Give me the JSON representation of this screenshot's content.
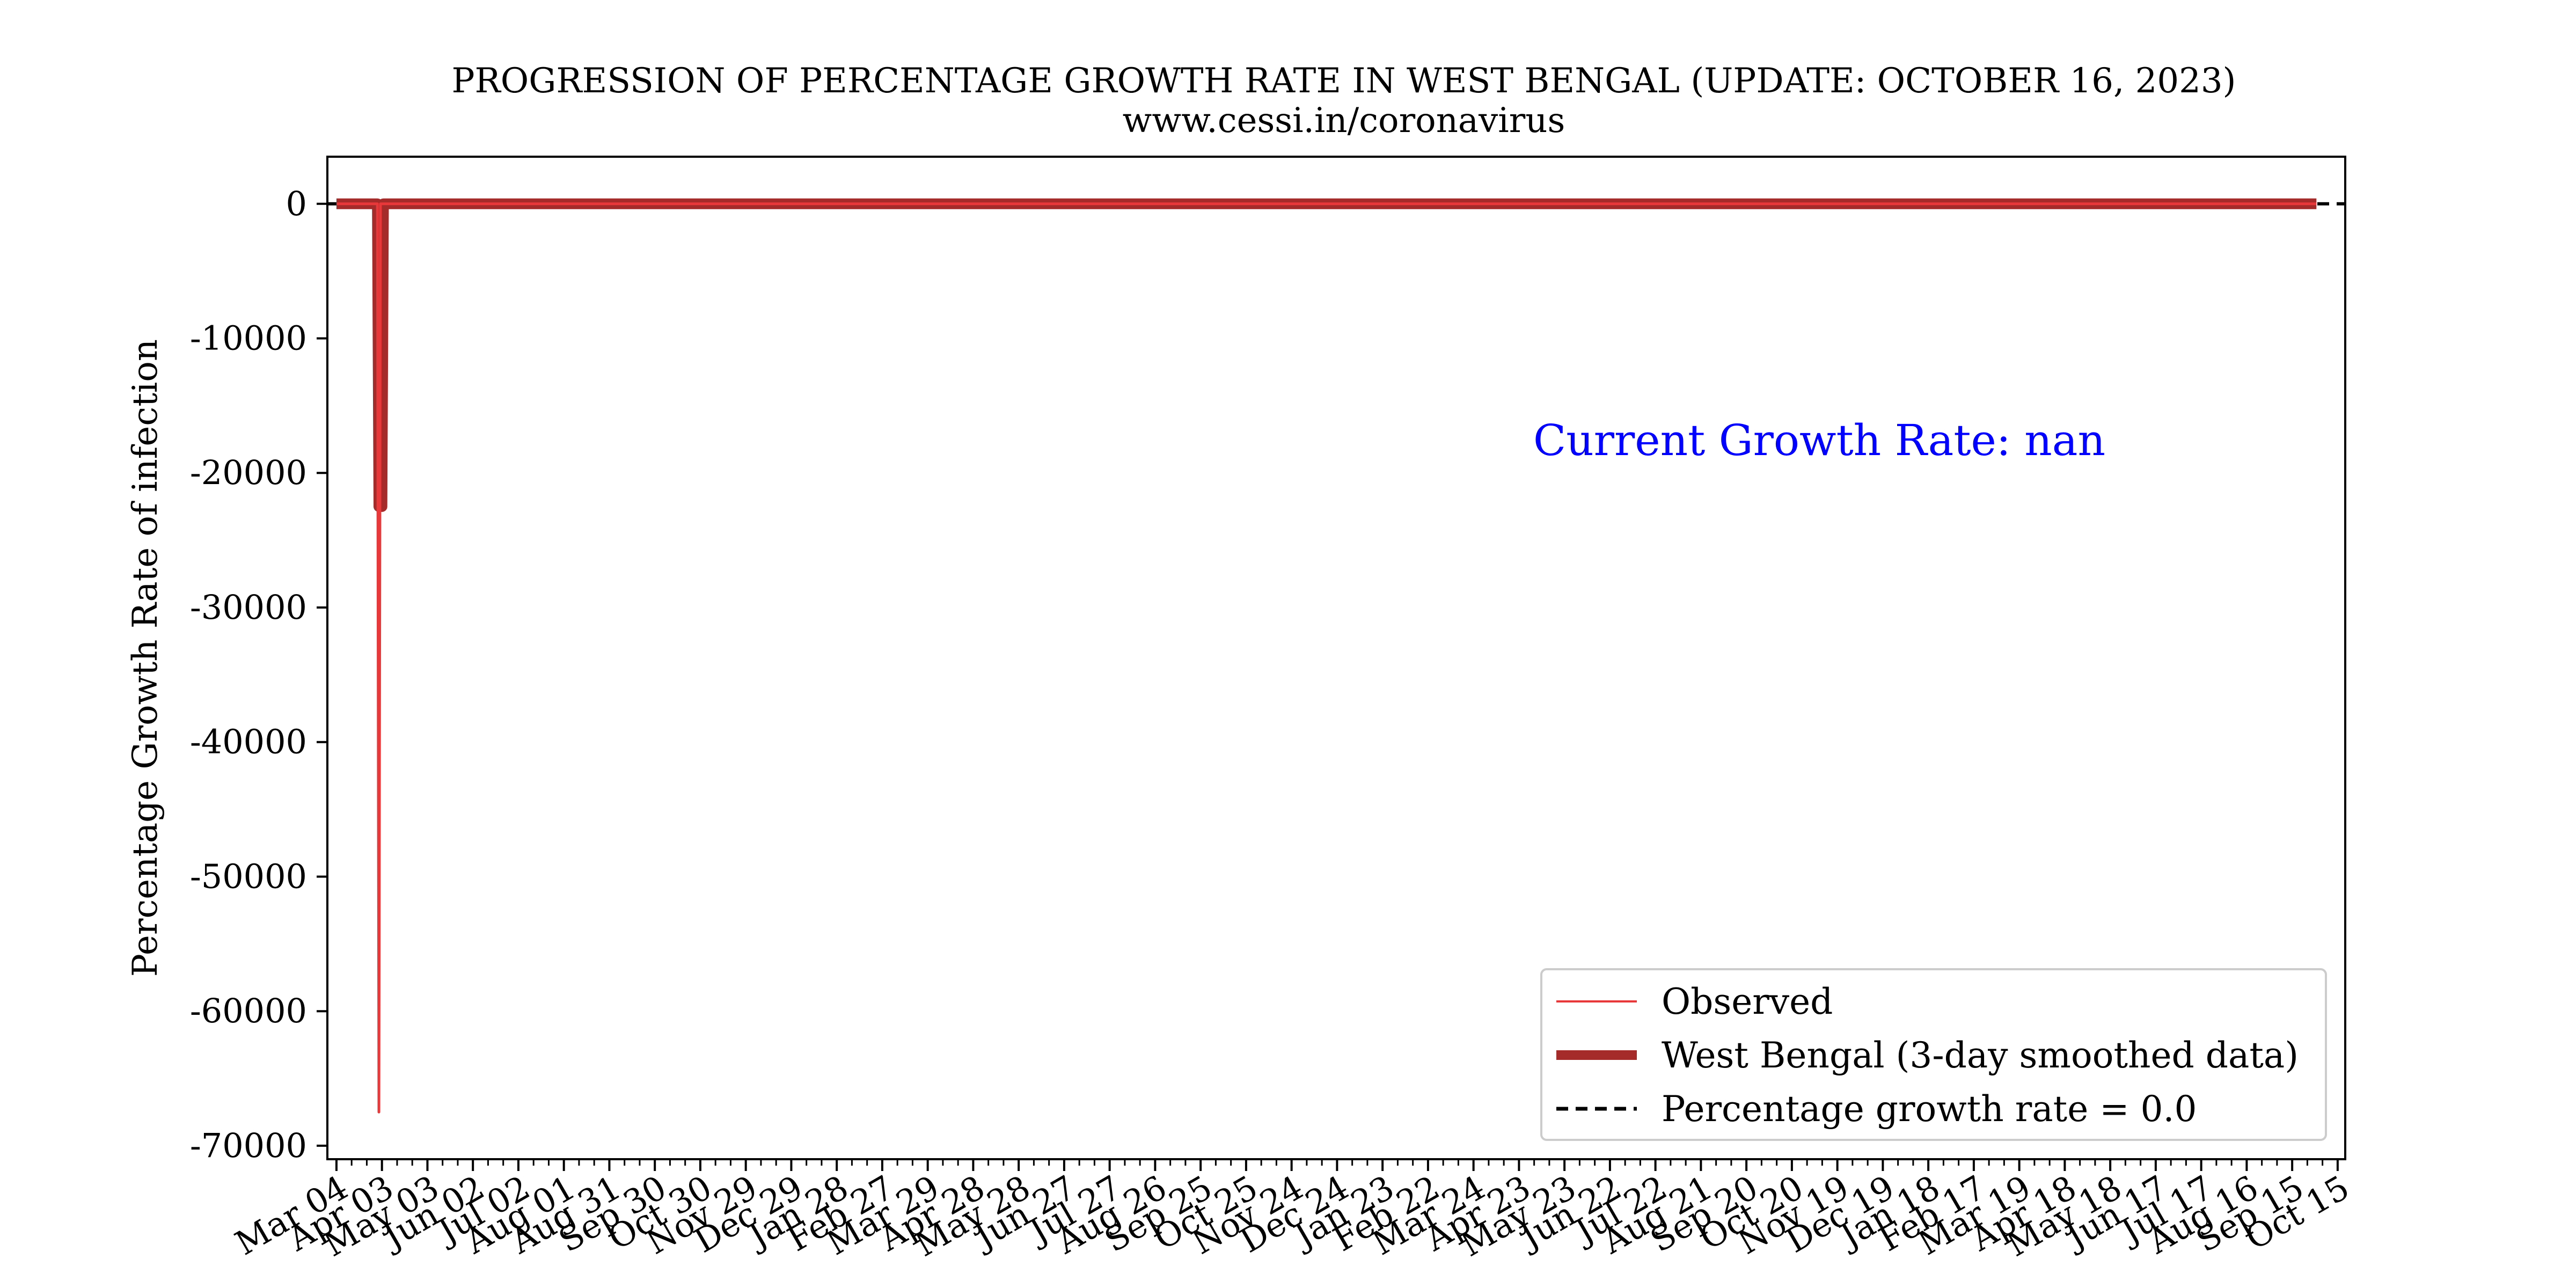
{
  "chart_data": {
    "type": "line",
    "title": "PROGRESSION OF PERCENTAGE GROWTH RATE IN WEST BENGAL (UPDATE: OCTOBER 16, 2023)",
    "subtitle": "www.cessi.in/coronavirus",
    "xlabel": "",
    "ylabel": "Percentage Growth Rate of infection",
    "x_tick_labels": [
      "Mar 04",
      "Apr 03",
      "May 03",
      "Jun 02",
      "Jul 02",
      "Aug 01",
      "Aug 31",
      "Sep 30",
      "Oct 30",
      "Nov 29",
      "Dec 29",
      "Jan 28",
      "Feb 27",
      "Mar 29",
      "Apr 28",
      "May 28",
      "Jun 27",
      "Jul 27",
      "Aug 26",
      "Sep 25",
      "Oct 25",
      "Nov 24",
      "Dec 24",
      "Jan 23",
      "Feb 22",
      "Mar 24",
      "Apr 23",
      "May 23",
      "Jun 22",
      "Jul 22",
      "Aug 21",
      "Sep 20",
      "Oct 20",
      "Nov 19",
      "Dec 19",
      "Jan 18",
      "Feb 17",
      "Mar 19",
      "Apr 18",
      "May 18",
      "Jun 17",
      "Jul 17",
      "Aug 16",
      "Sep 15",
      "Oct 15"
    ],
    "y_ticks": [
      0,
      -10000,
      -20000,
      -30000,
      -40000,
      -50000,
      -60000,
      -70000
    ],
    "y_tick_labels": [
      "0",
      "-10000",
      "-20000",
      "-30000",
      "-40000",
      "-50000",
      "-60000",
      "-70000"
    ],
    "ylim": [
      -71000,
      3500
    ],
    "xlim": [
      "2020-02-27",
      "2023-10-20"
    ],
    "annotation": "Current Growth Rate: nan",
    "legend_position": "lower-right",
    "legend": [
      {
        "label": "Observed",
        "color": "#e8383a",
        "style": "thin-solid"
      },
      {
        "label": "West Bengal (3-day smoothed data)",
        "color": "#a52a2a",
        "style": "thick-solid"
      },
      {
        "label": "Percentage growth rate = 0.0",
        "color": "#000000",
        "style": "dashed"
      }
    ],
    "series": [
      {
        "name": "Observed",
        "color": "#e8383a",
        "x": [
          "2020-03-04",
          "2020-03-31",
          "2020-04-01",
          "2020-04-02",
          "2020-04-03",
          "2020-04-04",
          "2023-10-01"
        ],
        "values": [
          0,
          0,
          -67500,
          0,
          0,
          0,
          0
        ]
      },
      {
        "name": "West Bengal (3-day smoothed data)",
        "color": "#a52a2a",
        "x": [
          "2020-03-04",
          "2020-03-31",
          "2020-04-01",
          "2020-04-02",
          "2020-04-03",
          "2020-04-04",
          "2023-10-01"
        ],
        "values": [
          0,
          0,
          -22500,
          -22500,
          -22500,
          0,
          0
        ]
      },
      {
        "name": "Percentage growth rate = 0.0",
        "color": "#000000",
        "x": [
          "2020-02-27",
          "2023-10-20"
        ],
        "values": [
          0,
          0
        ]
      }
    ]
  }
}
